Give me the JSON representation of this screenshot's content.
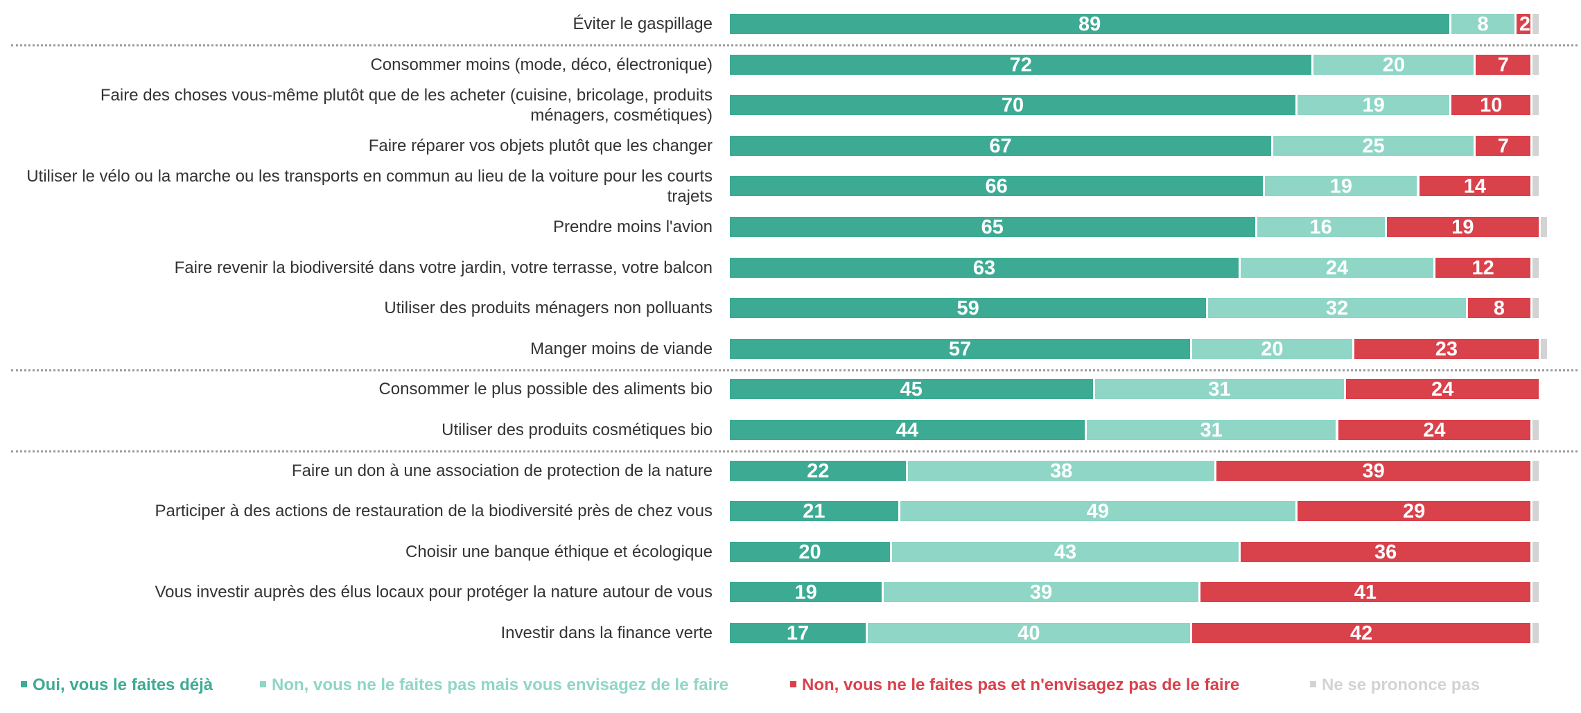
{
  "chart_data": {
    "type": "bar",
    "orientation": "horizontal",
    "stacked": true,
    "unit": "%",
    "title": "",
    "categories": [
      "Éviter le gaspillage",
      "Consommer moins (mode, déco, électronique)",
      "Faire des choses vous-même plutôt que de les acheter (cuisine, bricolage, produits ménagers, cosmétiques)",
      "Faire réparer vos objets plutôt que les changer",
      "Utiliser le vélo ou la marche ou les transports en commun au lieu de la voiture pour les courts trajets",
      "Prendre moins l'avion",
      "Faire revenir la biodiversité dans votre jardin, votre terrasse, votre balcon",
      "Utiliser des produits ménagers non polluants",
      "Manger moins de viande",
      "Consommer le plus possible des aliments bio",
      "Utiliser des produits cosmétiques bio",
      "Faire un don à une association de protection de la nature",
      "Participer à des actions de restauration de la biodiversité près de chez vous",
      "Choisir une banque éthique et écologique",
      "Vous investir auprès des élus locaux pour protéger la nature autour de vous",
      "Investir dans la finance verte"
    ],
    "series": [
      {
        "name": "Oui, vous le faites déjà",
        "color": "#3dab94",
        "values": [
          89,
          72,
          70,
          67,
          66,
          65,
          63,
          59,
          57,
          45,
          44,
          22,
          21,
          20,
          19,
          17
        ]
      },
      {
        "name": "Non, vous ne le faites pas mais vous envisagez de le faire",
        "color": "#8fd6c6",
        "values": [
          8,
          20,
          19,
          25,
          19,
          16,
          24,
          32,
          20,
          31,
          31,
          38,
          49,
          43,
          39,
          40
        ]
      },
      {
        "name": "Non, vous ne le faites pas et n'envisagez pas de le faire",
        "color": "#d9414b",
        "values": [
          2,
          7,
          10,
          7,
          14,
          19,
          12,
          8,
          23,
          24,
          24,
          39,
          29,
          36,
          41,
          42
        ]
      },
      {
        "name": "Ne se prononce pas",
        "color": "#d3d3d3",
        "values": [
          1,
          1,
          1,
          1,
          1,
          1,
          1,
          1,
          1,
          0,
          1,
          1,
          1,
          1,
          1,
          1
        ]
      }
    ],
    "group_separators_after": [
      0,
      8,
      10
    ],
    "legend_position": "bottom",
    "grid": false
  }
}
